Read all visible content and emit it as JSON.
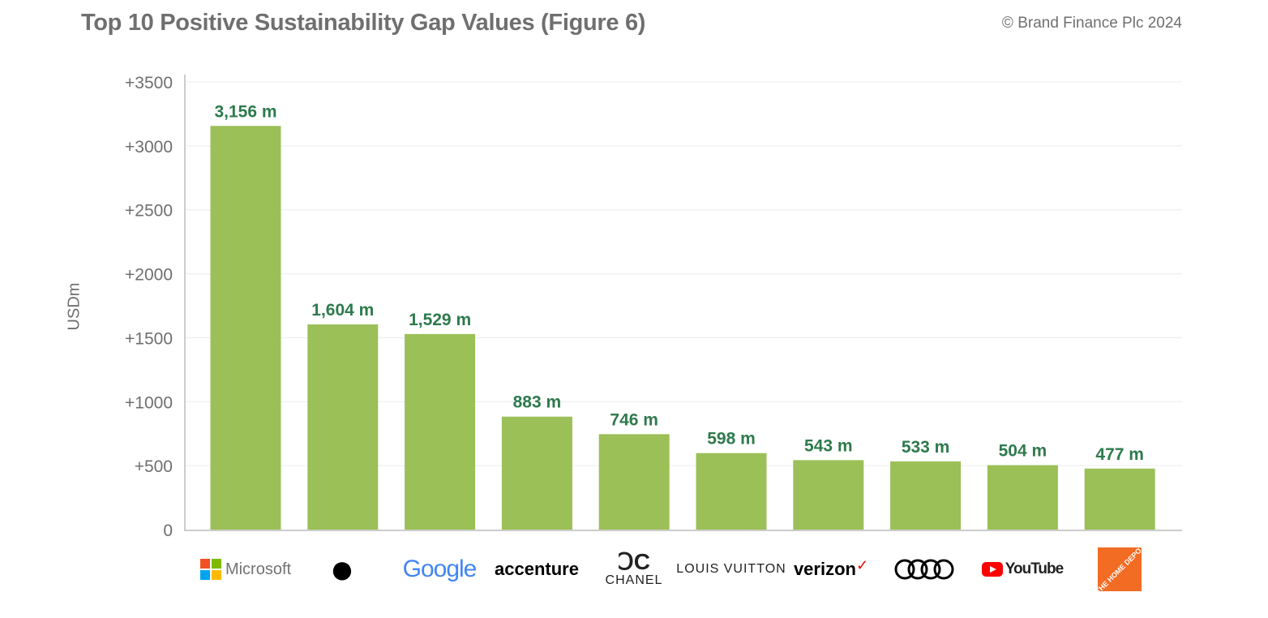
{
  "title": "Top 10 Positive Sustainability Gap Values (Figure 6)",
  "copyright": "© Brand Finance Plc 2024",
  "colors": {
    "bar": "#9bc057",
    "label": "#2e7a4c",
    "axis": "#6f6f6f",
    "grid": "#ececec"
  },
  "chart_data": {
    "type": "bar",
    "title": "Top 10 Positive Sustainability Gap Values (Figure 6)",
    "xlabel": "",
    "ylabel": "USDm",
    "ylim": [
      0,
      3500
    ],
    "yticks": [
      0,
      500,
      1000,
      1500,
      2000,
      2500,
      3000,
      3500
    ],
    "ytick_labels": [
      "0",
      "+500",
      "+1000",
      "+1500",
      "+2000",
      "+2500",
      "+3000",
      "+3500"
    ],
    "categories": [
      "Microsoft",
      "Apple",
      "Google",
      "accenture",
      "CHANEL",
      "LOUIS VUITTON",
      "verizon",
      "Audi",
      "YouTube",
      "THE HOME DEPOT"
    ],
    "values": [
      3156,
      1604,
      1529,
      883,
      746,
      598,
      543,
      533,
      504,
      477
    ],
    "data_labels": [
      "3,156 m",
      "1,604 m",
      "1,529 m",
      "883 m",
      "746 m",
      "598 m",
      "543 m",
      "533 m",
      "504 m",
      "477 m"
    ],
    "grid": true
  }
}
